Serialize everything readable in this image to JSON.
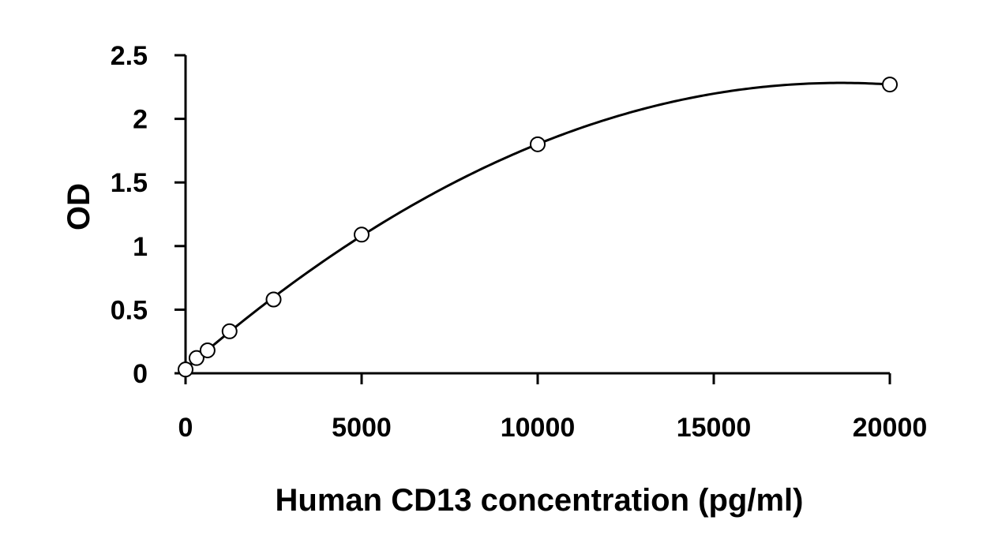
{
  "chart_data": {
    "type": "scatter",
    "title": "",
    "xlabel": "Human CD13 concentration (pg/ml)",
    "ylabel": "OD",
    "xlim": [
      0,
      20000
    ],
    "ylim": [
      0,
      2.5
    ],
    "x_ticks": [
      0,
      5000,
      10000,
      15000,
      20000
    ],
    "x_tick_labels": [
      "0",
      "5000",
      "10000",
      "15000",
      "20000"
    ],
    "y_ticks": [
      0,
      0.5,
      1,
      1.5,
      2,
      2.5
    ],
    "y_tick_labels": [
      "0",
      "0.5",
      "1",
      "1.5",
      "2",
      "2.5"
    ],
    "grid": false,
    "legend": "none",
    "series": [
      {
        "x": [
          0,
          312,
          625,
          1250,
          2500,
          5000,
          10000,
          20000
        ],
        "y": [
          0.03,
          0.12,
          0.18,
          0.33,
          0.58,
          1.09,
          1.8,
          2.27
        ],
        "marker": "open-circle",
        "fit": "polynomial"
      }
    ],
    "colors": {
      "line": "#000000",
      "marker_edge": "#000000",
      "marker_fill": "#ffffff"
    }
  }
}
